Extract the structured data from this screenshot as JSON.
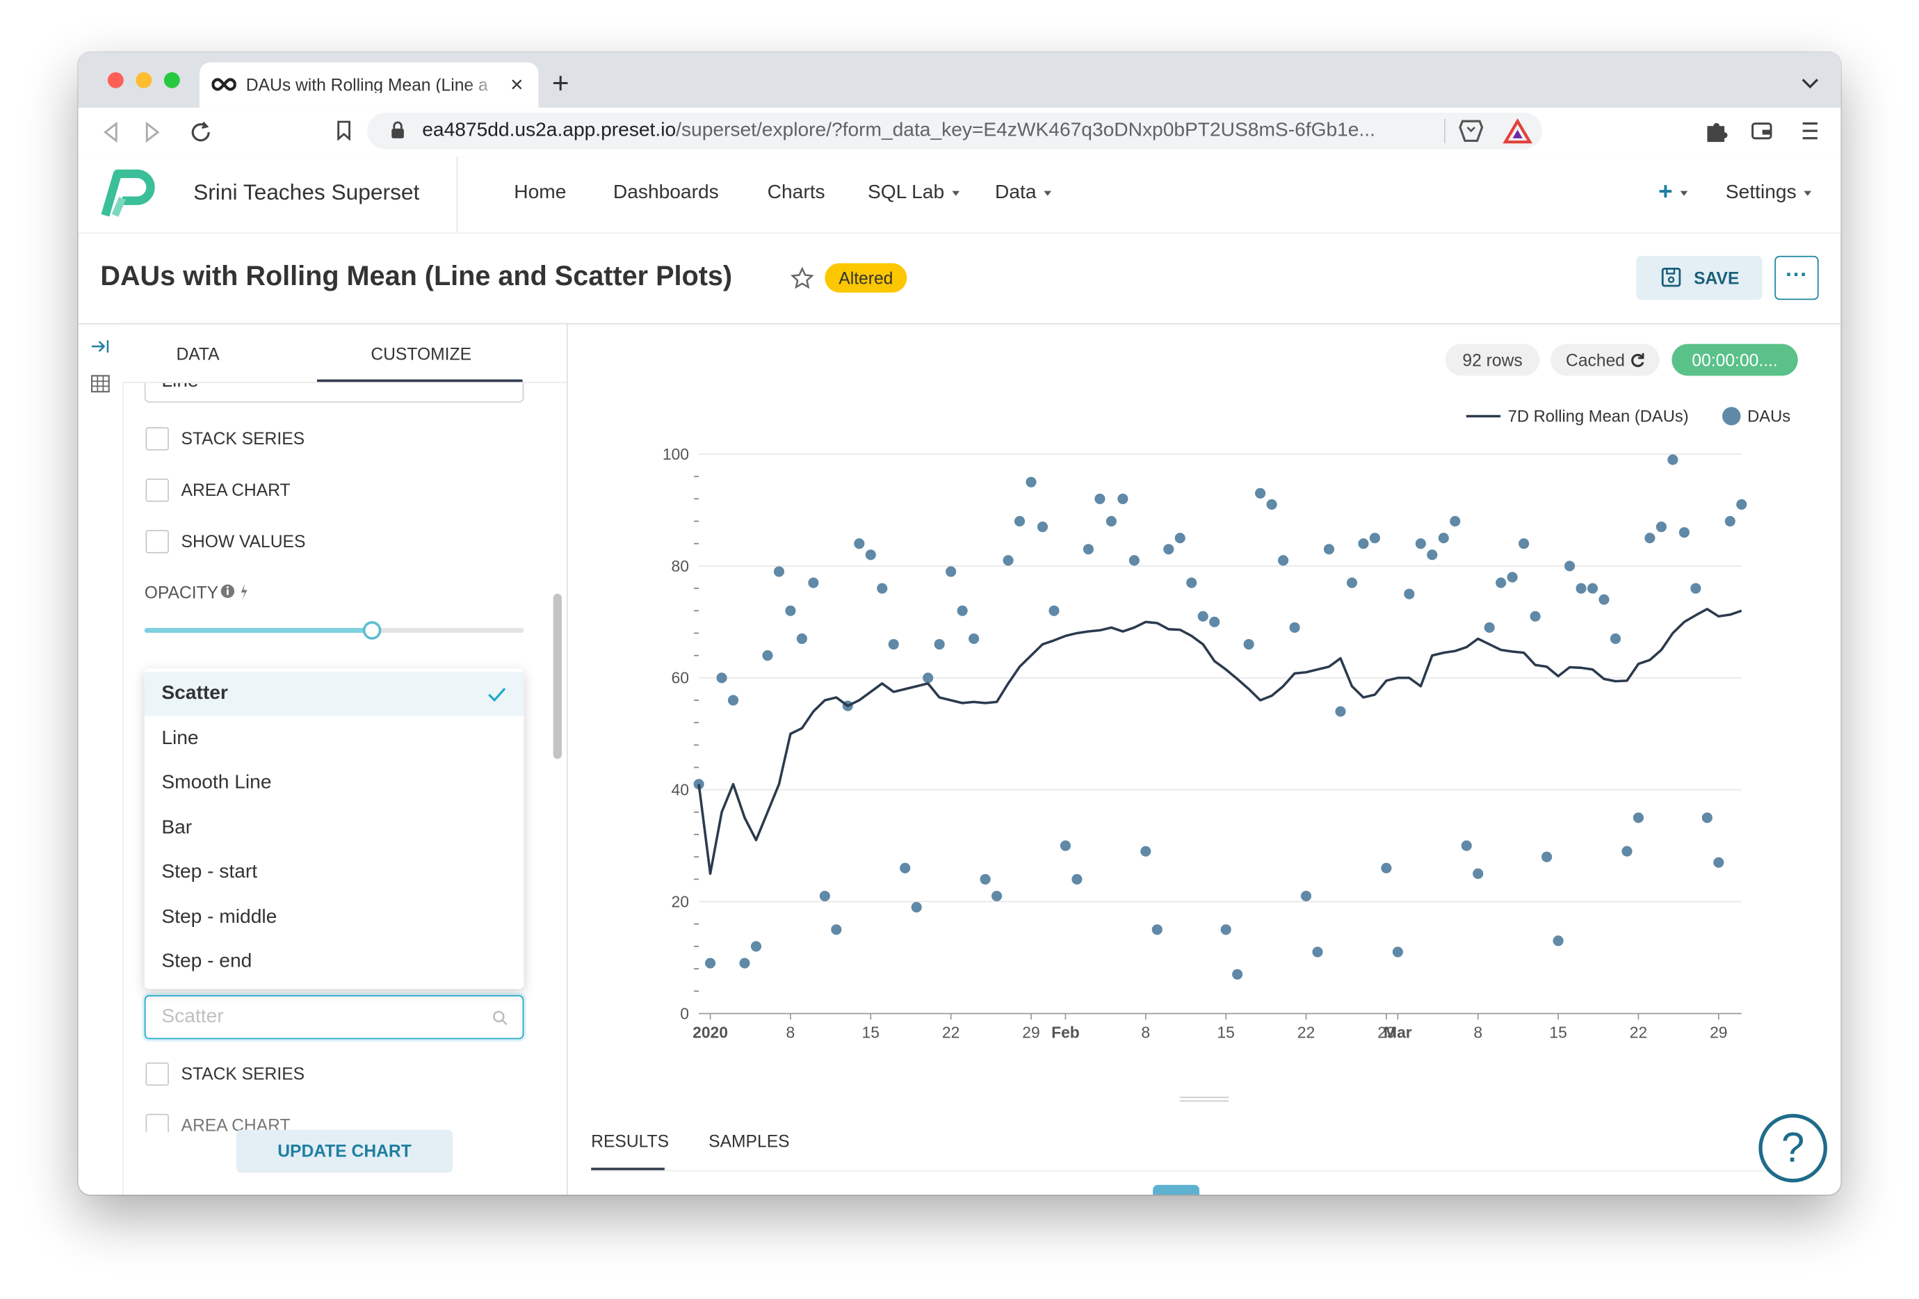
{
  "browser": {
    "tab_title": "DAUs with Rolling Mean (Line a",
    "url_host": "ea4875dd.us2a.app.preset.io",
    "url_path": "/superset/explore/?form_data_key=E4zWK467q3oDNxp0bPT2US8mS-6fGb1e..."
  },
  "app": {
    "workspace": "Srini Teaches Superset",
    "nav": [
      "Home",
      "Dashboards",
      "Charts",
      "SQL Lab",
      "Data"
    ],
    "settings": "Settings"
  },
  "header": {
    "title": "DAUs with Rolling Mean (Line and Scatter Plots)",
    "status": "Altered",
    "save": "SAVE"
  },
  "panel": {
    "tabs": [
      "DATA",
      "CUSTOMIZE"
    ],
    "top_select": "Line",
    "checkboxes": [
      "STACK SERIES",
      "AREA CHART",
      "SHOW VALUES"
    ],
    "opacity_label": "OPACITY",
    "opacity": 0.6,
    "opacity_range": [
      0,
      1
    ],
    "series_type_options": [
      "Scatter",
      "Line",
      "Smooth Line",
      "Bar",
      "Step - start",
      "Step - middle",
      "Step - end"
    ],
    "series_type_placeholder": "Scatter",
    "checkboxes_lower": [
      "STACK SERIES",
      "AREA CHART"
    ],
    "update": "UPDATE CHART"
  },
  "chart_panel": {
    "row_count": "92 rows",
    "cached": "Cached",
    "timer": "00:00:00....",
    "tabs": [
      "RESULTS",
      "SAMPLES"
    ]
  },
  "chart_data": {
    "type": "combo",
    "legend": "top-right",
    "grid": true,
    "x": [
      "2019-12-31",
      "2020-01-01",
      "2020-01-02",
      "2020-01-03",
      "2020-01-04",
      "2020-01-05",
      "2020-01-06",
      "2020-01-07",
      "2020-01-08",
      "2020-01-09",
      "2020-01-10",
      "2020-01-11",
      "2020-01-12",
      "2020-01-13",
      "2020-01-14",
      "2020-01-15",
      "2020-01-16",
      "2020-01-17",
      "2020-01-18",
      "2020-01-19",
      "2020-01-20",
      "2020-01-21",
      "2020-01-22",
      "2020-01-23",
      "2020-01-24",
      "2020-01-25",
      "2020-01-26",
      "2020-01-27",
      "2020-01-28",
      "2020-01-29",
      "2020-01-30",
      "2020-01-31",
      "2020-02-01",
      "2020-02-02",
      "2020-02-03",
      "2020-02-04",
      "2020-02-05",
      "2020-02-06",
      "2020-02-07",
      "2020-02-08",
      "2020-02-09",
      "2020-02-10",
      "2020-02-11",
      "2020-02-12",
      "2020-02-13",
      "2020-02-14",
      "2020-02-15",
      "2020-02-16",
      "2020-02-17",
      "2020-02-18",
      "2020-02-19",
      "2020-02-20",
      "2020-02-21",
      "2020-02-22",
      "2020-02-23",
      "2020-02-24",
      "2020-02-25",
      "2020-02-26",
      "2020-02-27",
      "2020-02-28",
      "2020-02-29",
      "2020-03-01",
      "2020-03-02",
      "2020-03-03",
      "2020-03-04",
      "2020-03-05",
      "2020-03-06",
      "2020-03-07",
      "2020-03-08",
      "2020-03-09",
      "2020-03-10",
      "2020-03-11",
      "2020-03-12",
      "2020-03-13",
      "2020-03-14",
      "2020-03-15",
      "2020-03-16",
      "2020-03-17",
      "2020-03-18",
      "2020-03-19",
      "2020-03-20",
      "2020-03-21",
      "2020-03-22",
      "2020-03-23",
      "2020-03-24",
      "2020-03-25",
      "2020-03-26",
      "2020-03-27",
      "2020-03-28",
      "2020-03-29",
      "2020-03-30",
      "2020-03-31"
    ],
    "xlim": [
      "2019-12-31",
      "2020-03-31"
    ],
    "xticks": [
      {
        "value": "2020-01-01",
        "label": "2020"
      },
      {
        "value": "2020-01-08",
        "label": "8"
      },
      {
        "value": "2020-01-15",
        "label": "15"
      },
      {
        "value": "2020-01-22",
        "label": "22"
      },
      {
        "value": "2020-01-29",
        "label": "29"
      },
      {
        "value": "2020-02-01",
        "label": "Feb"
      },
      {
        "value": "2020-02-08",
        "label": "8"
      },
      {
        "value": "2020-02-15",
        "label": "15"
      },
      {
        "value": "2020-02-22",
        "label": "22"
      },
      {
        "value": "2020-02-29",
        "label": "29"
      },
      {
        "value": "2020-03-01",
        "label": "Mar"
      },
      {
        "value": "2020-03-08",
        "label": "8"
      },
      {
        "value": "2020-03-15",
        "label": "15"
      },
      {
        "value": "2020-03-22",
        "label": "22"
      },
      {
        "value": "2020-03-29",
        "label": "29"
      }
    ],
    "ylim": [
      0,
      100
    ],
    "yticks": [
      0,
      20,
      40,
      60,
      80,
      100
    ],
    "yminorticks": [
      4,
      8,
      12,
      16,
      24,
      28,
      32,
      36,
      44,
      48,
      52,
      56,
      64,
      68,
      72,
      76,
      84,
      88,
      92,
      96
    ],
    "series": [
      {
        "name": "7D Rolling Mean (DAUs)",
        "type": "line",
        "color": "#2b3a4e",
        "values": [
          41,
          25,
          36,
          41,
          35,
          31,
          36,
          41,
          50,
          51,
          54,
          56,
          56.5,
          55,
          56,
          57.5,
          59,
          57.5,
          58,
          58.5,
          59,
          56.5,
          56,
          55.5,
          55.7,
          55.5,
          55.7,
          59,
          62,
          64,
          66,
          66.7,
          67.5,
          68,
          68.3,
          68.5,
          69,
          68.3,
          69,
          70,
          69.8,
          68.7,
          68.6,
          67.5,
          66,
          63,
          61.5,
          59.8,
          58,
          56,
          56.8,
          58.5,
          60.8,
          61,
          61.5,
          62,
          63.5,
          58.5,
          56.5,
          57,
          59.5,
          60,
          60,
          58.5,
          64,
          64.5,
          64.8,
          65.5,
          67,
          66,
          65,
          64.7,
          64.5,
          62.3,
          62,
          60.3,
          61.9,
          61.8,
          61.5,
          59.8,
          59.4,
          59.5,
          62.5,
          63.2,
          65,
          68,
          70,
          71.2,
          72.3,
          71,
          71.3,
          72
        ]
      },
      {
        "name": "DAUs",
        "type": "scatter",
        "color": "#5f89a6",
        "values": [
          41,
          9,
          60,
          56,
          9,
          12,
          64,
          79,
          72,
          67,
          77,
          21,
          15,
          55,
          84,
          82,
          76,
          66,
          26,
          19,
          60,
          66,
          79,
          72,
          67,
          24,
          21,
          81,
          88,
          95,
          87,
          72,
          30,
          24,
          83,
          92,
          88,
          92,
          81,
          29,
          15,
          83,
          85,
          77,
          71,
          70,
          15,
          7,
          66,
          93,
          91,
          81,
          69,
          21,
          11,
          83,
          54,
          77,
          84,
          85,
          26,
          11,
          75,
          84,
          82,
          85,
          88,
          30,
          25,
          69,
          77,
          78,
          84,
          71,
          28,
          13,
          80,
          76,
          76,
          74,
          67,
          29,
          35,
          85,
          87,
          99,
          86,
          76,
          35,
          27,
          88,
          91
        ]
      }
    ]
  }
}
